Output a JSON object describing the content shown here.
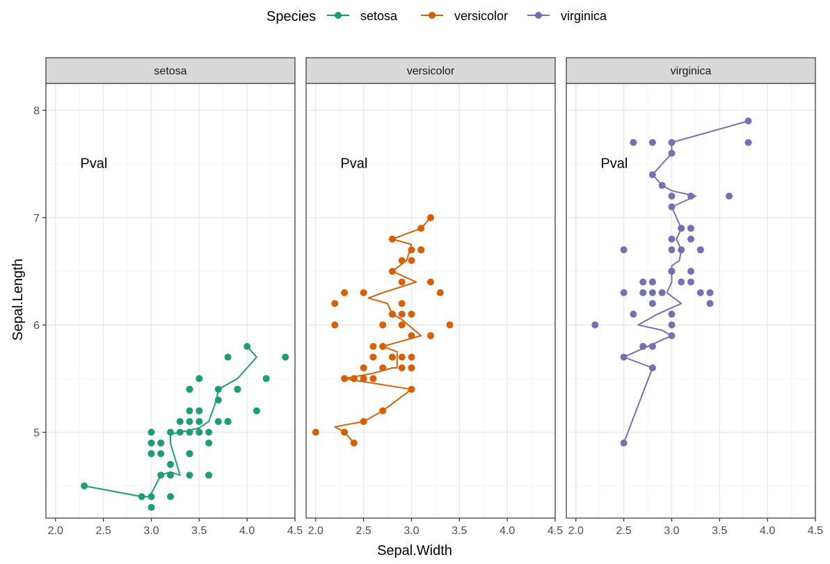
{
  "colors": {
    "setosa": "#1b9e77",
    "versicolor": "#d95f02",
    "virginica": "#7570b3",
    "strip_bg": "#d9d9d9",
    "grid_major": "#ebebeb",
    "grid_minor": "#f5f5f5",
    "border": "#333333",
    "tick_text": "#4d4d4d"
  },
  "chart_data": {
    "type": "scatter",
    "facet_by": "Species",
    "xlabel": "Sepal.Width",
    "ylabel": "Sepal.Length",
    "xlim": [
      1.9,
      4.5
    ],
    "ylim": [
      4.2,
      8.25
    ],
    "x_ticks": [
      "2.0",
      "2.5",
      "3.0",
      "3.5",
      "4.0",
      "4.5"
    ],
    "y_ticks": [
      "5",
      "6",
      "7",
      "8"
    ],
    "grid": true,
    "legend": {
      "position": "top",
      "title": "Species",
      "entries": [
        "setosa",
        "versicolor",
        "virginica"
      ]
    },
    "annotation": "Pval",
    "annotation_position": {
      "x": 2.4,
      "y": 7.5
    },
    "panels": [
      {
        "name": "setosa",
        "points": [
          [
            3.5,
            5.1
          ],
          [
            3.0,
            4.9
          ],
          [
            3.2,
            4.7
          ],
          [
            3.1,
            4.6
          ],
          [
            3.6,
            5.0
          ],
          [
            3.9,
            5.4
          ],
          [
            3.4,
            4.6
          ],
          [
            3.4,
            5.0
          ],
          [
            2.9,
            4.4
          ],
          [
            3.1,
            4.9
          ],
          [
            3.7,
            5.4
          ],
          [
            3.4,
            4.8
          ],
          [
            3.0,
            4.8
          ],
          [
            3.0,
            4.3
          ],
          [
            4.0,
            5.8
          ],
          [
            4.4,
            5.7
          ],
          [
            3.9,
            5.4
          ],
          [
            3.5,
            5.1
          ],
          [
            3.8,
            5.7
          ],
          [
            3.8,
            5.1
          ],
          [
            3.4,
            5.4
          ],
          [
            3.7,
            5.1
          ],
          [
            3.6,
            4.6
          ],
          [
            3.3,
            5.1
          ],
          [
            3.4,
            4.8
          ],
          [
            3.0,
            5.0
          ],
          [
            3.4,
            5.0
          ],
          [
            3.5,
            5.2
          ],
          [
            3.4,
            5.2
          ],
          [
            3.2,
            4.7
          ],
          [
            3.1,
            4.8
          ],
          [
            3.4,
            5.4
          ],
          [
            4.1,
            5.2
          ],
          [
            4.2,
            5.5
          ],
          [
            3.1,
            4.9
          ],
          [
            3.2,
            5.0
          ],
          [
            3.5,
            5.5
          ],
          [
            3.6,
            4.9
          ],
          [
            3.0,
            4.4
          ],
          [
            3.4,
            5.1
          ],
          [
            3.5,
            5.0
          ],
          [
            2.3,
            4.5
          ],
          [
            3.2,
            4.4
          ],
          [
            3.5,
            5.0
          ],
          [
            3.8,
            5.1
          ],
          [
            3.0,
            4.8
          ],
          [
            3.8,
            5.1
          ],
          [
            3.2,
            4.6
          ],
          [
            3.7,
            5.3
          ],
          [
            3.3,
            5.0
          ]
        ],
        "fit": [
          [
            2.3,
            4.5
          ],
          [
            2.9,
            4.4
          ],
          [
            3.0,
            4.4
          ],
          [
            3.0,
            4.43
          ],
          [
            3.1,
            4.6
          ],
          [
            3.2,
            4.63
          ],
          [
            3.3,
            4.6
          ],
          [
            3.2,
            4.9
          ],
          [
            3.2,
            4.98
          ],
          [
            3.3,
            5.0
          ],
          [
            3.4,
            5.02
          ],
          [
            3.5,
            5.04
          ],
          [
            3.6,
            5.1
          ],
          [
            3.68,
            5.3
          ],
          [
            3.7,
            5.4
          ],
          [
            3.8,
            5.45
          ],
          [
            3.9,
            5.5
          ],
          [
            4.0,
            5.6
          ],
          [
            4.1,
            5.7
          ],
          [
            4.0,
            5.8
          ]
        ]
      },
      {
        "name": "versicolor",
        "points": [
          [
            3.2,
            7.0
          ],
          [
            3.2,
            6.4
          ],
          [
            3.1,
            6.9
          ],
          [
            2.3,
            5.5
          ],
          [
            2.8,
            6.5
          ],
          [
            2.8,
            5.7
          ],
          [
            3.3,
            6.3
          ],
          [
            2.4,
            4.9
          ],
          [
            2.9,
            6.6
          ],
          [
            2.7,
            5.2
          ],
          [
            2.0,
            5.0
          ],
          [
            3.0,
            5.9
          ],
          [
            2.2,
            6.0
          ],
          [
            2.9,
            6.1
          ],
          [
            2.9,
            5.6
          ],
          [
            3.1,
            6.7
          ],
          [
            3.0,
            5.6
          ],
          [
            2.7,
            5.8
          ],
          [
            2.2,
            6.2
          ],
          [
            2.5,
            5.6
          ],
          [
            3.2,
            5.9
          ],
          [
            2.8,
            6.1
          ],
          [
            2.5,
            6.3
          ],
          [
            2.8,
            6.1
          ],
          [
            2.9,
            6.4
          ],
          [
            3.0,
            6.6
          ],
          [
            2.8,
            6.8
          ],
          [
            3.0,
            6.7
          ],
          [
            2.9,
            6.0
          ],
          [
            2.6,
            5.7
          ],
          [
            2.4,
            5.5
          ],
          [
            2.4,
            5.5
          ],
          [
            2.7,
            5.8
          ],
          [
            2.7,
            6.0
          ],
          [
            3.0,
            5.4
          ],
          [
            3.4,
            6.0
          ],
          [
            3.1,
            6.7
          ],
          [
            2.3,
            6.3
          ],
          [
            3.0,
            5.6
          ],
          [
            2.5,
            5.5
          ],
          [
            2.6,
            5.5
          ],
          [
            3.0,
            6.1
          ],
          [
            2.6,
            5.8
          ],
          [
            2.3,
            5.0
          ],
          [
            2.7,
            5.6
          ],
          [
            3.0,
            5.7
          ],
          [
            2.9,
            5.7
          ],
          [
            2.9,
            6.2
          ],
          [
            2.5,
            5.1
          ],
          [
            2.8,
            5.7
          ]
        ],
        "fit": [
          [
            2.4,
            4.9
          ],
          [
            2.3,
            5.0
          ],
          [
            2.2,
            5.05
          ],
          [
            2.5,
            5.1
          ],
          [
            2.7,
            5.2
          ],
          [
            3.0,
            5.4
          ],
          [
            2.3,
            5.5
          ],
          [
            2.6,
            5.55
          ],
          [
            2.8,
            5.6
          ],
          [
            2.85,
            5.6
          ],
          [
            2.85,
            5.75
          ],
          [
            2.7,
            5.8
          ],
          [
            3.1,
            5.9
          ],
          [
            2.9,
            6.05
          ],
          [
            2.8,
            6.1
          ],
          [
            2.75,
            6.2
          ],
          [
            2.55,
            6.25
          ],
          [
            2.7,
            6.3
          ],
          [
            3.05,
            6.4
          ],
          [
            2.8,
            6.5
          ],
          [
            2.95,
            6.6
          ],
          [
            3.0,
            6.75
          ],
          [
            2.8,
            6.8
          ],
          [
            3.1,
            6.9
          ],
          [
            3.2,
            7.0
          ]
        ]
      },
      {
        "name": "virginica",
        "points": [
          [
            3.3,
            6.3
          ],
          [
            2.7,
            5.8
          ],
          [
            3.0,
            7.1
          ],
          [
            2.9,
            6.3
          ],
          [
            3.0,
            6.5
          ],
          [
            3.0,
            7.6
          ],
          [
            2.5,
            4.9
          ],
          [
            2.9,
            7.3
          ],
          [
            2.5,
            6.7
          ],
          [
            3.6,
            7.2
          ],
          [
            3.2,
            6.5
          ],
          [
            2.7,
            6.4
          ],
          [
            3.0,
            6.8
          ],
          [
            2.5,
            5.7
          ],
          [
            2.8,
            5.8
          ],
          [
            3.2,
            6.4
          ],
          [
            3.0,
            6.5
          ],
          [
            3.8,
            7.7
          ],
          [
            2.6,
            7.7
          ],
          [
            2.2,
            6.0
          ],
          [
            3.2,
            6.9
          ],
          [
            2.8,
            5.6
          ],
          [
            2.8,
            7.7
          ],
          [
            2.7,
            6.3
          ],
          [
            3.3,
            6.7
          ],
          [
            3.2,
            7.2
          ],
          [
            2.8,
            6.2
          ],
          [
            3.0,
            6.1
          ],
          [
            2.8,
            6.4
          ],
          [
            3.0,
            7.2
          ],
          [
            2.8,
            7.4
          ],
          [
            3.8,
            7.9
          ],
          [
            2.8,
            6.4
          ],
          [
            2.8,
            6.3
          ],
          [
            2.6,
            6.1
          ],
          [
            3.0,
            7.7
          ],
          [
            3.4,
            6.3
          ],
          [
            3.1,
            6.4
          ],
          [
            3.0,
            6.0
          ],
          [
            3.1,
            6.9
          ],
          [
            3.1,
            6.7
          ],
          [
            3.1,
            6.9
          ],
          [
            2.7,
            5.8
          ],
          [
            3.2,
            6.8
          ],
          [
            3.3,
            6.7
          ],
          [
            3.0,
            6.7
          ],
          [
            2.5,
            6.3
          ],
          [
            3.0,
            6.5
          ],
          [
            3.4,
            6.2
          ],
          [
            3.0,
            5.9
          ]
        ],
        "fit": [
          [
            2.5,
            4.9
          ],
          [
            2.8,
            5.6
          ],
          [
            2.5,
            5.7
          ],
          [
            2.75,
            5.8
          ],
          [
            3.0,
            5.9
          ],
          [
            2.9,
            5.95
          ],
          [
            2.65,
            6.0
          ],
          [
            2.85,
            6.1
          ],
          [
            3.1,
            6.2
          ],
          [
            2.95,
            6.3
          ],
          [
            3.0,
            6.4
          ],
          [
            3.0,
            6.55
          ],
          [
            3.08,
            6.6
          ],
          [
            3.1,
            6.7
          ],
          [
            3.05,
            6.8
          ],
          [
            3.1,
            6.9
          ],
          [
            3.0,
            7.1
          ],
          [
            3.25,
            7.2
          ],
          [
            3.0,
            7.25
          ],
          [
            2.9,
            7.3
          ],
          [
            2.8,
            7.4
          ],
          [
            3.0,
            7.6
          ],
          [
            3.0,
            7.7
          ],
          [
            3.8,
            7.9
          ]
        ]
      }
    ]
  }
}
